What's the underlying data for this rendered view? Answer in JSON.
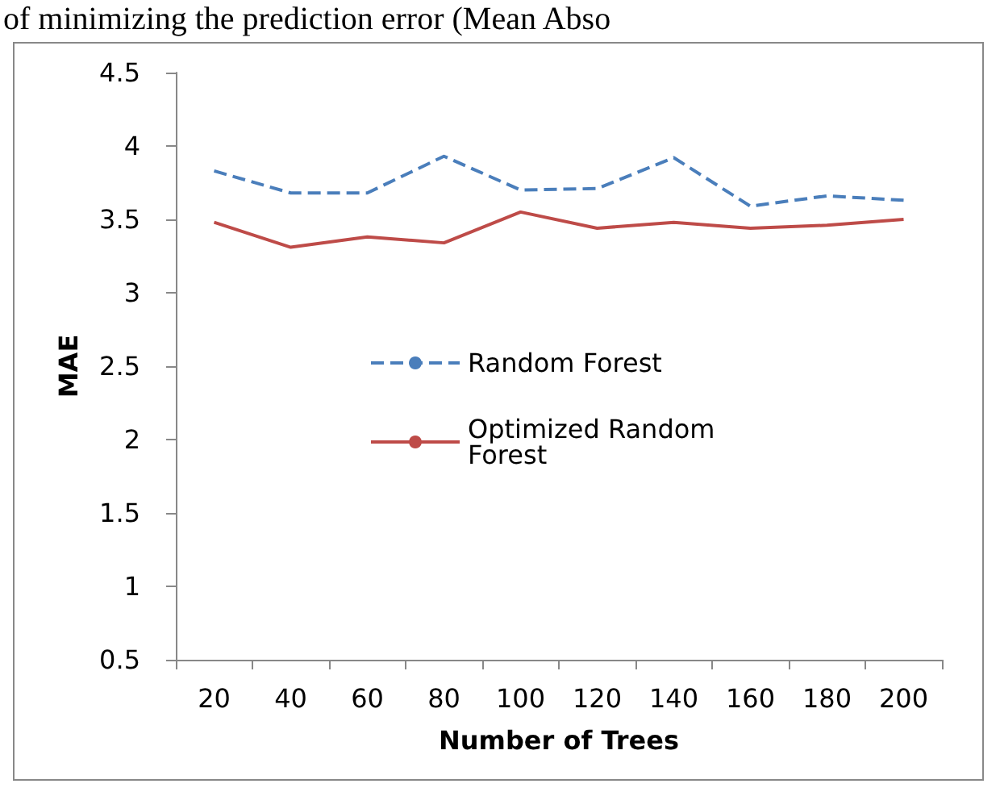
{
  "chart_data": {
    "type": "line",
    "annotations": [
      "of minimizing the prediction error (Mean Abso"
    ],
    "xlabel": "Number of Trees",
    "ylabel": "MAE",
    "categories": [
      "20",
      "40",
      "60",
      "80",
      "100",
      "120",
      "140",
      "160",
      "180",
      "200"
    ],
    "series": [
      {
        "name": "Random Forest",
        "color": "#4a7ebb",
        "line_style": "dashed",
        "values": [
          3.83,
          3.68,
          3.68,
          3.93,
          3.7,
          3.71,
          3.92,
          3.59,
          3.66,
          3.63
        ]
      },
      {
        "name": "Optimized Random Forest",
        "color": "#be4b48",
        "line_style": "solid",
        "values": [
          3.48,
          3.31,
          3.38,
          3.34,
          3.55,
          3.44,
          3.48,
          3.44,
          3.46,
          3.5
        ]
      }
    ],
    "ylim": [
      0.5,
      4.5
    ],
    "yticks": [
      0.5,
      1,
      1.5,
      2,
      2.5,
      3,
      3.5,
      4,
      4.5
    ],
    "grid": false,
    "legend": "center",
    "marker": "none"
  }
}
